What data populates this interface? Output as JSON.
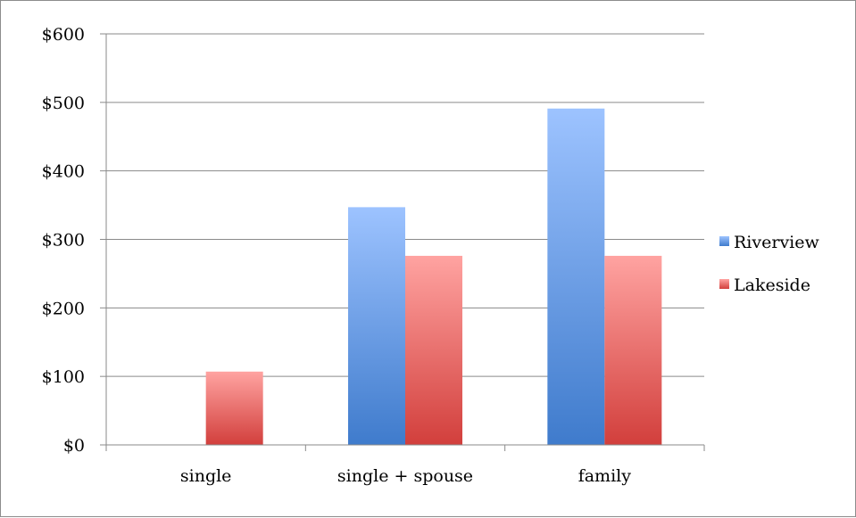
{
  "chart_data": {
    "type": "bar",
    "categories": [
      "single",
      "single + spouse",
      "family"
    ],
    "series": [
      {
        "name": "Riverview",
        "values": [
          0,
          347,
          491
        ],
        "color": "#5b8fd6"
      },
      {
        "name": "Lakeside",
        "values": [
          107,
          276,
          276
        ],
        "color": "#e05a57"
      }
    ],
    "title": "",
    "xlabel": "",
    "ylabel": "",
    "ylim": [
      0,
      600
    ],
    "yticks": [
      0,
      100,
      200,
      300,
      400,
      500,
      600
    ],
    "ytick_labels": [
      "$0",
      "$100",
      "$200",
      "$300",
      "$400",
      "$500",
      "$600"
    ],
    "grid": true,
    "legend_position": "right"
  }
}
